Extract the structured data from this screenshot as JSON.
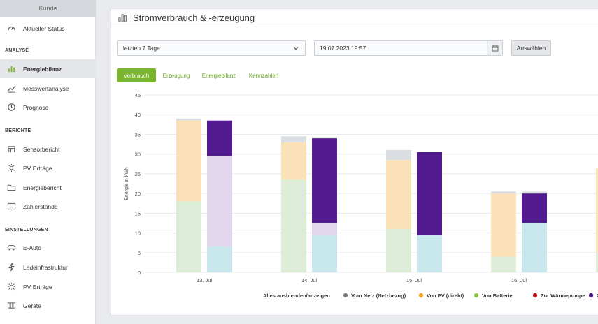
{
  "sidebar": {
    "kunde_tab": "Kunde",
    "items_top": [
      {
        "label": "Aktueller Status",
        "icon": "gauge-icon"
      }
    ],
    "section_analyse": "ANALYSE",
    "items_analyse": [
      {
        "label": "Energiebilanz",
        "icon": "bar-chart-icon",
        "active": true
      },
      {
        "label": "Messwertanalyse",
        "icon": "line-chart-icon"
      },
      {
        "label": "Prognose",
        "icon": "clock-icon"
      }
    ],
    "section_berichte": "BERICHTE",
    "items_berichte": [
      {
        "label": "Sensorbericht",
        "icon": "sensor-icon"
      },
      {
        "label": "PV Erträge",
        "icon": "sun-icon"
      },
      {
        "label": "Energiebericht",
        "icon": "folder-icon"
      },
      {
        "label": "Zählerstände",
        "icon": "meter-icon"
      }
    ],
    "section_einstellungen": "EINSTELLUNGEN",
    "items_einstellungen": [
      {
        "label": "E-Auto",
        "icon": "car-icon"
      },
      {
        "label": "Ladeinfrastruktur",
        "icon": "bolt-icon"
      },
      {
        "label": "PV Erträge",
        "icon": "sun-icon"
      },
      {
        "label": "Geräte",
        "icon": "devices-icon"
      }
    ]
  },
  "card": {
    "title": "Stromverbrauch & -erzeugung",
    "period": "letzten 7 Tage",
    "datetime": "19.07.2023 19:57",
    "select_button": "Auswählen",
    "tabs": [
      "Verbrauch",
      "Erzeugung",
      "Energiebilanz",
      "Kennzahlen"
    ],
    "active_tab": "Verbrauch"
  },
  "colors": {
    "accent": "#7ab52e",
    "netz": "#dadde1",
    "pv": "#fbe1b8",
    "batterie": "#dcecd7",
    "waermepumpe_legend": "#b81d1d",
    "purple_dark": "#521b8f",
    "purple_light": "#e3d7ee",
    "cyan": "#c8e7ec"
  },
  "chart_data": {
    "type": "bar",
    "stacked": true,
    "ylabel": "Energie in kWh",
    "ylim": [
      0,
      45
    ],
    "yticks": [
      0,
      5,
      10,
      15,
      20,
      25,
      30,
      35,
      40,
      45
    ],
    "categories": [
      "13. Jul",
      "14. Jul",
      "15. Jul",
      "16. Jul"
    ],
    "grid": true,
    "legend_position": "bottom",
    "legend_toggle": "Alles ausblenden/anzeigen",
    "legend": [
      {
        "name": "Vom Netz (Netzbezug)",
        "color": "#7f7f7f"
      },
      {
        "name": "Von PV (direkt)",
        "color": "#f5a623"
      },
      {
        "name": "Von Batterie",
        "color": "#8bc34a"
      },
      {
        "name": "Zur Wärmepumpe",
        "color": "#c0161c"
      },
      {
        "name": "Z",
        "color": "#4b1a86"
      }
    ],
    "left_bars": [
      {
        "batterie": 18,
        "pv": 20.5,
        "netz": 0.5
      },
      {
        "batterie": 23.5,
        "pv": 9.5,
        "netz": 1.5
      },
      {
        "batterie": 11,
        "pv": 17.5,
        "netz": 2.5
      },
      {
        "batterie": 4,
        "pv": 16,
        "netz": 0.5
      }
    ],
    "right_bars": [
      {
        "cyan": 6.5,
        "lila": 23,
        "dunkel": 9,
        "netz": 0
      },
      {
        "cyan": 9.5,
        "lila": 3,
        "dunkel": 21.5,
        "netz": 0.3
      },
      {
        "cyan": 9.5,
        "lila": 0,
        "dunkel": 21,
        "netz": 0
      },
      {
        "cyan": 12.5,
        "lila": 0,
        "dunkel": 7.5,
        "netz": 0.5
      }
    ],
    "partial_bar_right_edge": {
      "batterie": 5,
      "pv": 21.5
    }
  }
}
